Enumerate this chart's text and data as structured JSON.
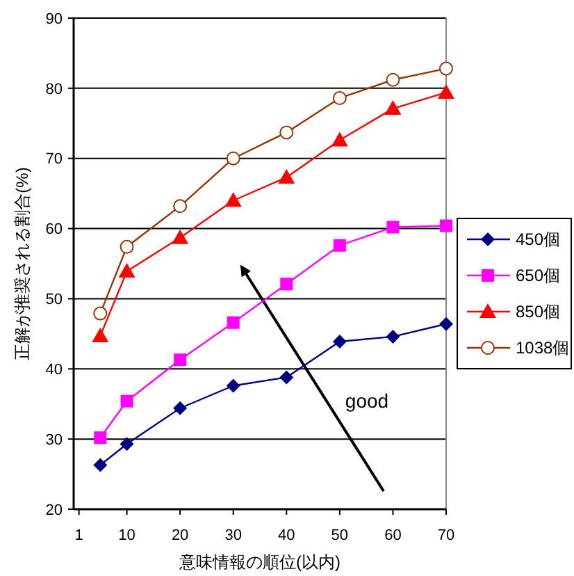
{
  "chart_data": {
    "type": "line",
    "xlabel": "意味情報の順位(以内)",
    "ylabel": "正解が推奨される割合(%)",
    "x": [
      5,
      10,
      20,
      30,
      40,
      50,
      60,
      70
    ],
    "series": [
      {
        "name": "450個",
        "color": "#000080",
        "marker": "diamond",
        "values": [
          26.3,
          29.3,
          34.4,
          37.6,
          38.8,
          43.9,
          44.6,
          46.4
        ]
      },
      {
        "name": "650個",
        "color": "#ff00ff",
        "marker": "square",
        "values": [
          30.2,
          35.4,
          41.3,
          46.6,
          52.1,
          57.6,
          60.2,
          60.4
        ]
      },
      {
        "name": "850個",
        "color": "#ff0000",
        "marker": "triangle",
        "values": [
          44.7,
          53.9,
          58.7,
          64.0,
          67.3,
          72.6,
          77.1,
          79.4
        ]
      },
      {
        "name": "1038個",
        "color": "#993300",
        "marker": "circle",
        "values": [
          47.9,
          57.4,
          63.2,
          70.0,
          73.7,
          78.6,
          81.2,
          82.8
        ]
      }
    ],
    "xlim": [
      0,
      70
    ],
    "xticks": [
      1,
      10,
      20,
      30,
      40,
      50,
      60,
      70
    ],
    "ylim": [
      20,
      90
    ],
    "yticks": [
      20,
      30,
      40,
      50,
      60,
      70,
      80,
      90
    ],
    "grid": "y",
    "legend": "right",
    "annotations": [
      "good"
    ]
  }
}
